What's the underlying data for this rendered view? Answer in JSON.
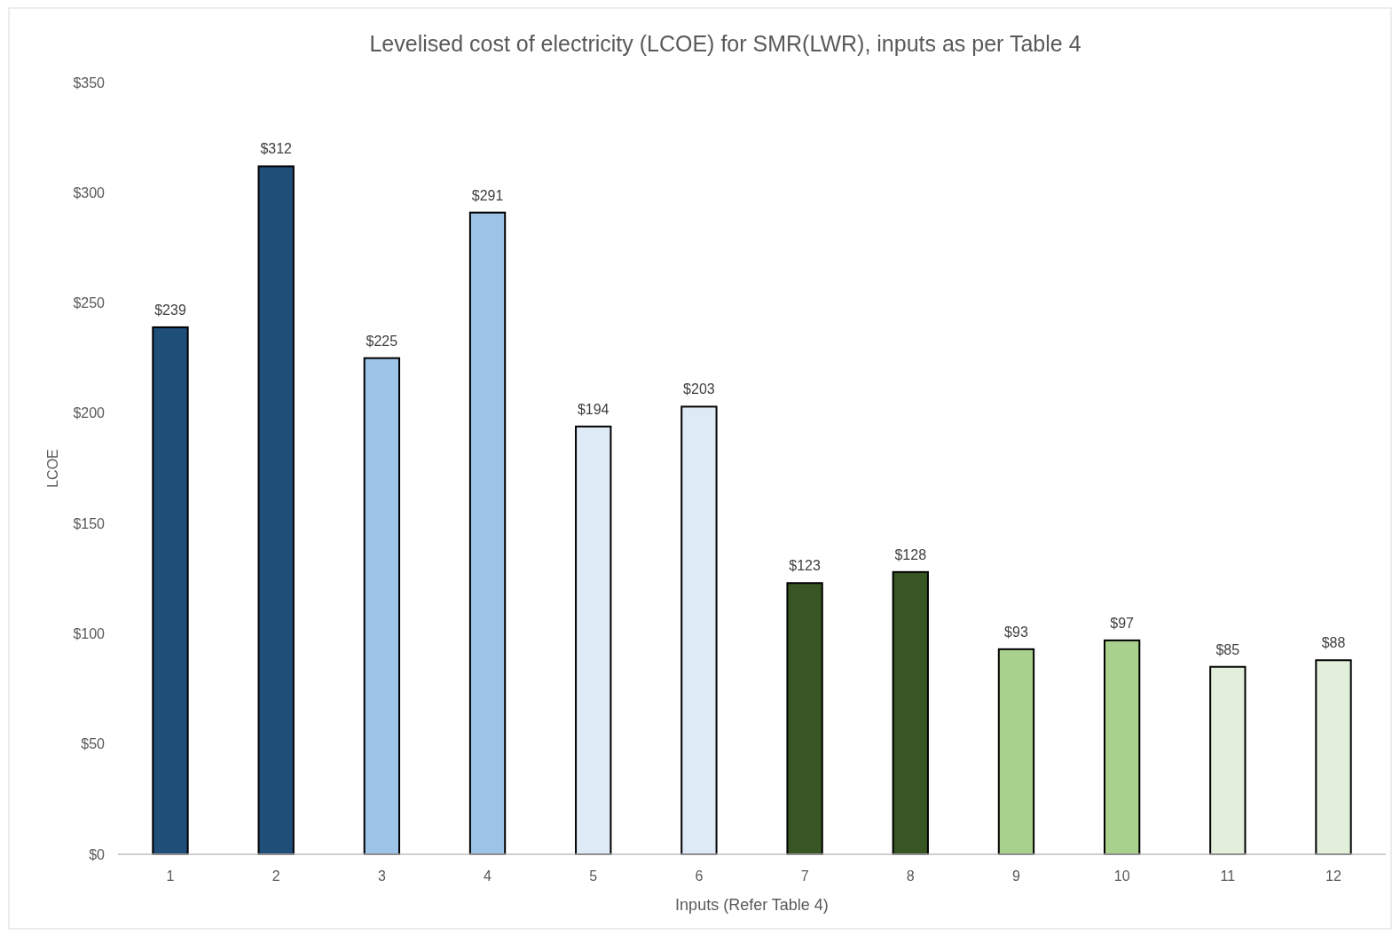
{
  "chart_data": {
    "type": "bar",
    "title": "Levelised cost of electricity (LCOE) for SMR(LWR), inputs as per Table 4",
    "xlabel": "Inputs (Refer Table 4)",
    "ylabel": "LCOE",
    "categories": [
      "1",
      "2",
      "3",
      "4",
      "5",
      "6",
      "7",
      "8",
      "9",
      "10",
      "11",
      "12"
    ],
    "values": [
      239,
      312,
      225,
      291,
      194,
      203,
      123,
      128,
      93,
      97,
      85,
      88
    ],
    "value_labels": [
      "$239",
      "$312",
      "$225",
      "$291",
      "$194",
      "$203",
      "$123",
      "$128",
      "$93",
      "$97",
      "$85",
      "$88"
    ],
    "colors": [
      "#1f4e79",
      "#1f4e79",
      "#9dc3e6",
      "#9dc3e6",
      "#deebf7",
      "#deebf7",
      "#375623",
      "#375623",
      "#a9d18e",
      "#a9d18e",
      "#e2efda",
      "#e2efda"
    ],
    "ylim": [
      0,
      350
    ],
    "yticks": [
      {
        "value": 0,
        "label": "$0"
      },
      {
        "value": 50,
        "label": "$50"
      },
      {
        "value": 100,
        "label": "$100"
      },
      {
        "value": 150,
        "label": "$150"
      },
      {
        "value": 200,
        "label": "$200"
      },
      {
        "value": 250,
        "label": "$250"
      },
      {
        "value": 300,
        "label": "$300"
      },
      {
        "value": 350,
        "label": "$350"
      }
    ],
    "grid": false
  }
}
